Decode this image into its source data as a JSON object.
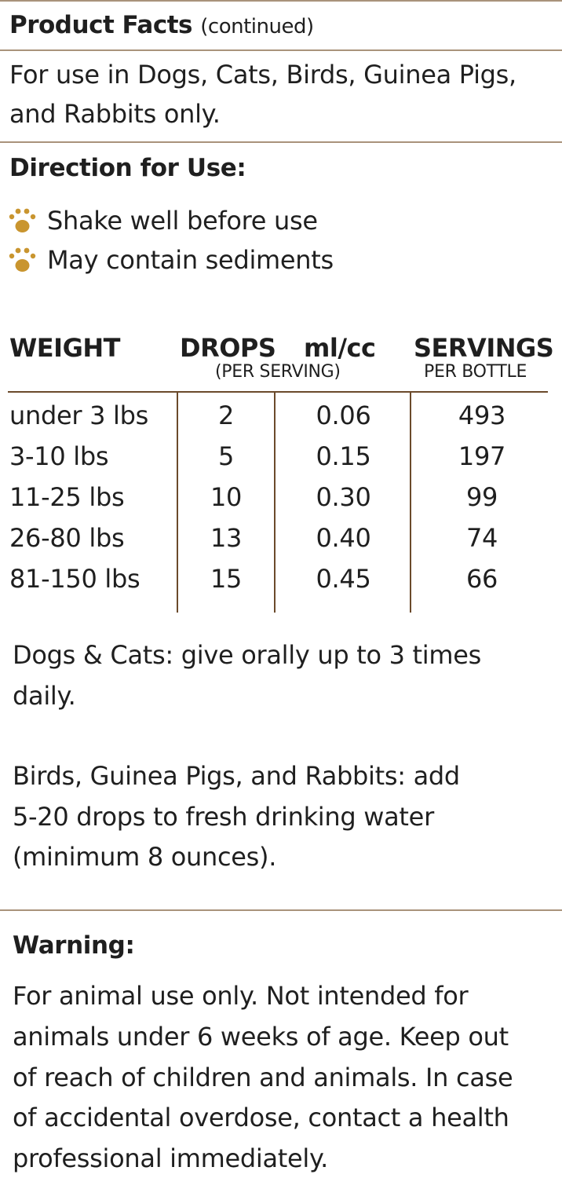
{
  "header": {
    "title": "Product Facts",
    "subtitle": "(continued)"
  },
  "intro": {
    "line1": "For use in Dogs, Cats, Birds, Guinea Pigs,",
    "line2": "and Rabbits only."
  },
  "directions": {
    "heading": "Direction for Use:",
    "bullets": [
      "Shake well before use",
      "May contain sediments"
    ],
    "bullet_icon": "paw-print-icon",
    "icon_color": "#c9952f"
  },
  "dosage_table": {
    "headers": {
      "weight": "WEIGHT",
      "drops": "DROPS",
      "ml": "ml/cc",
      "drops_ml_sub": "(PER SERVING)",
      "servings": "SERVINGS",
      "servings_sub": "PER BOTTLE"
    },
    "rows": [
      {
        "weight": "under 3 lbs",
        "drops": "2",
        "ml": "0.06",
        "servings": "493"
      },
      {
        "weight": "3-10 lbs",
        "drops": "5",
        "ml": "0.15",
        "servings": "197"
      },
      {
        "weight": "11-25 lbs",
        "drops": "10",
        "ml": "0.30",
        "servings": "99"
      },
      {
        "weight": "26-80 lbs",
        "drops": "13",
        "ml": "0.40",
        "servings": "74"
      },
      {
        "weight": "81-150 lbs",
        "drops": "15",
        "ml": "0.45",
        "servings": "66"
      }
    ]
  },
  "dogs_cats": {
    "line1": "Dogs & Cats: give orally up to 3 times",
    "line2": "daily."
  },
  "small_animals": {
    "line1": "Birds, Guinea Pigs, and Rabbits: add",
    "line2": "5-20 drops to fresh drinking water",
    "line3": "(minimum 8 ounces)."
  },
  "warning": {
    "heading": "Warning:",
    "lines": [
      "For animal use only. Not intended for",
      "animals under 6 weeks of age. Keep out",
      "of reach of children and animals. In case",
      "of accidental overdose, contact a health",
      "professional immediately."
    ]
  }
}
